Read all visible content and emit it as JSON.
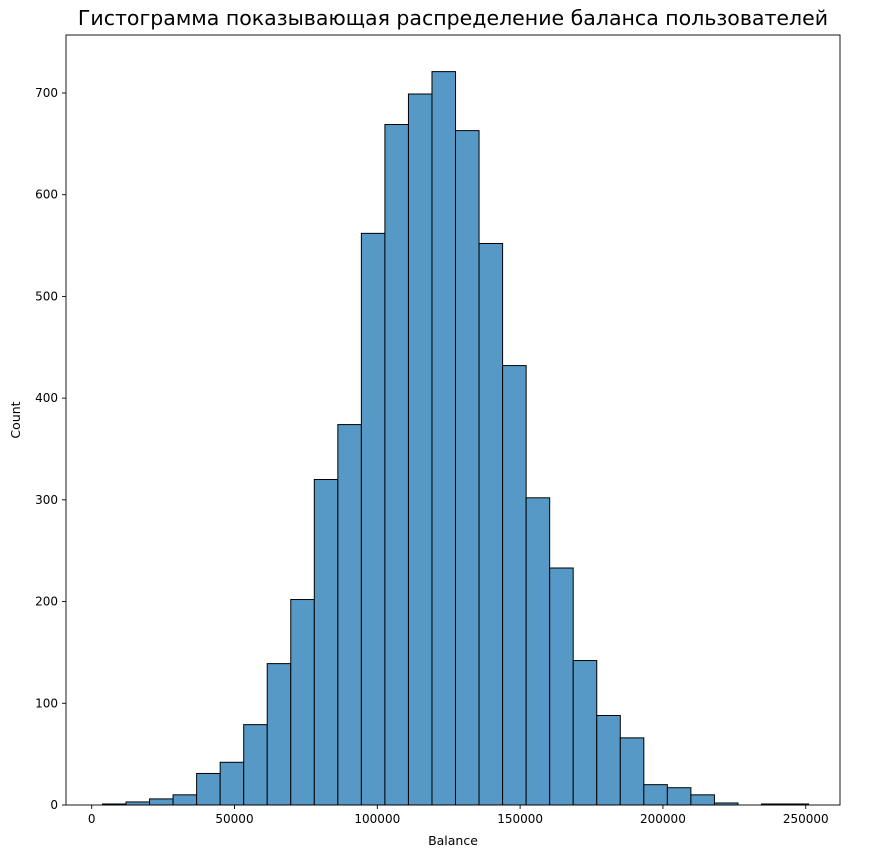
{
  "chart_data": {
    "type": "histogram",
    "title": "Гистограмма показывающая распределение баланса пользователей",
    "xlabel": "Balance",
    "ylabel": "Count",
    "xlim": [
      -9000,
      262000
    ],
    "ylim": [
      0,
      757
    ],
    "xticks": [
      0,
      50000,
      100000,
      150000,
      200000,
      250000
    ],
    "yticks": [
      0,
      100,
      200,
      300,
      400,
      500,
      600,
      700
    ],
    "bin_edges": [
      3768,
      12009,
      20251,
      28492,
      36733,
      44974,
      53215,
      61456,
      69697,
      77938,
      86179,
      94420,
      102661,
      110902,
      119143,
      127384,
      135625,
      143866,
      152107,
      160348,
      168589,
      176830,
      185071,
      193312,
      201553,
      209794,
      218035,
      226276,
      234517,
      242758,
      250999
    ],
    "counts": [
      1,
      3,
      6,
      10,
      31,
      42,
      79,
      139,
      202,
      320,
      374,
      562,
      669,
      699,
      721,
      663,
      552,
      432,
      302,
      233,
      142,
      88,
      66,
      20,
      17,
      10,
      2,
      0,
      1,
      1
    ],
    "bar_color": "#5799c6",
    "edge_color": "#000000",
    "grid": false,
    "legend": "none"
  }
}
